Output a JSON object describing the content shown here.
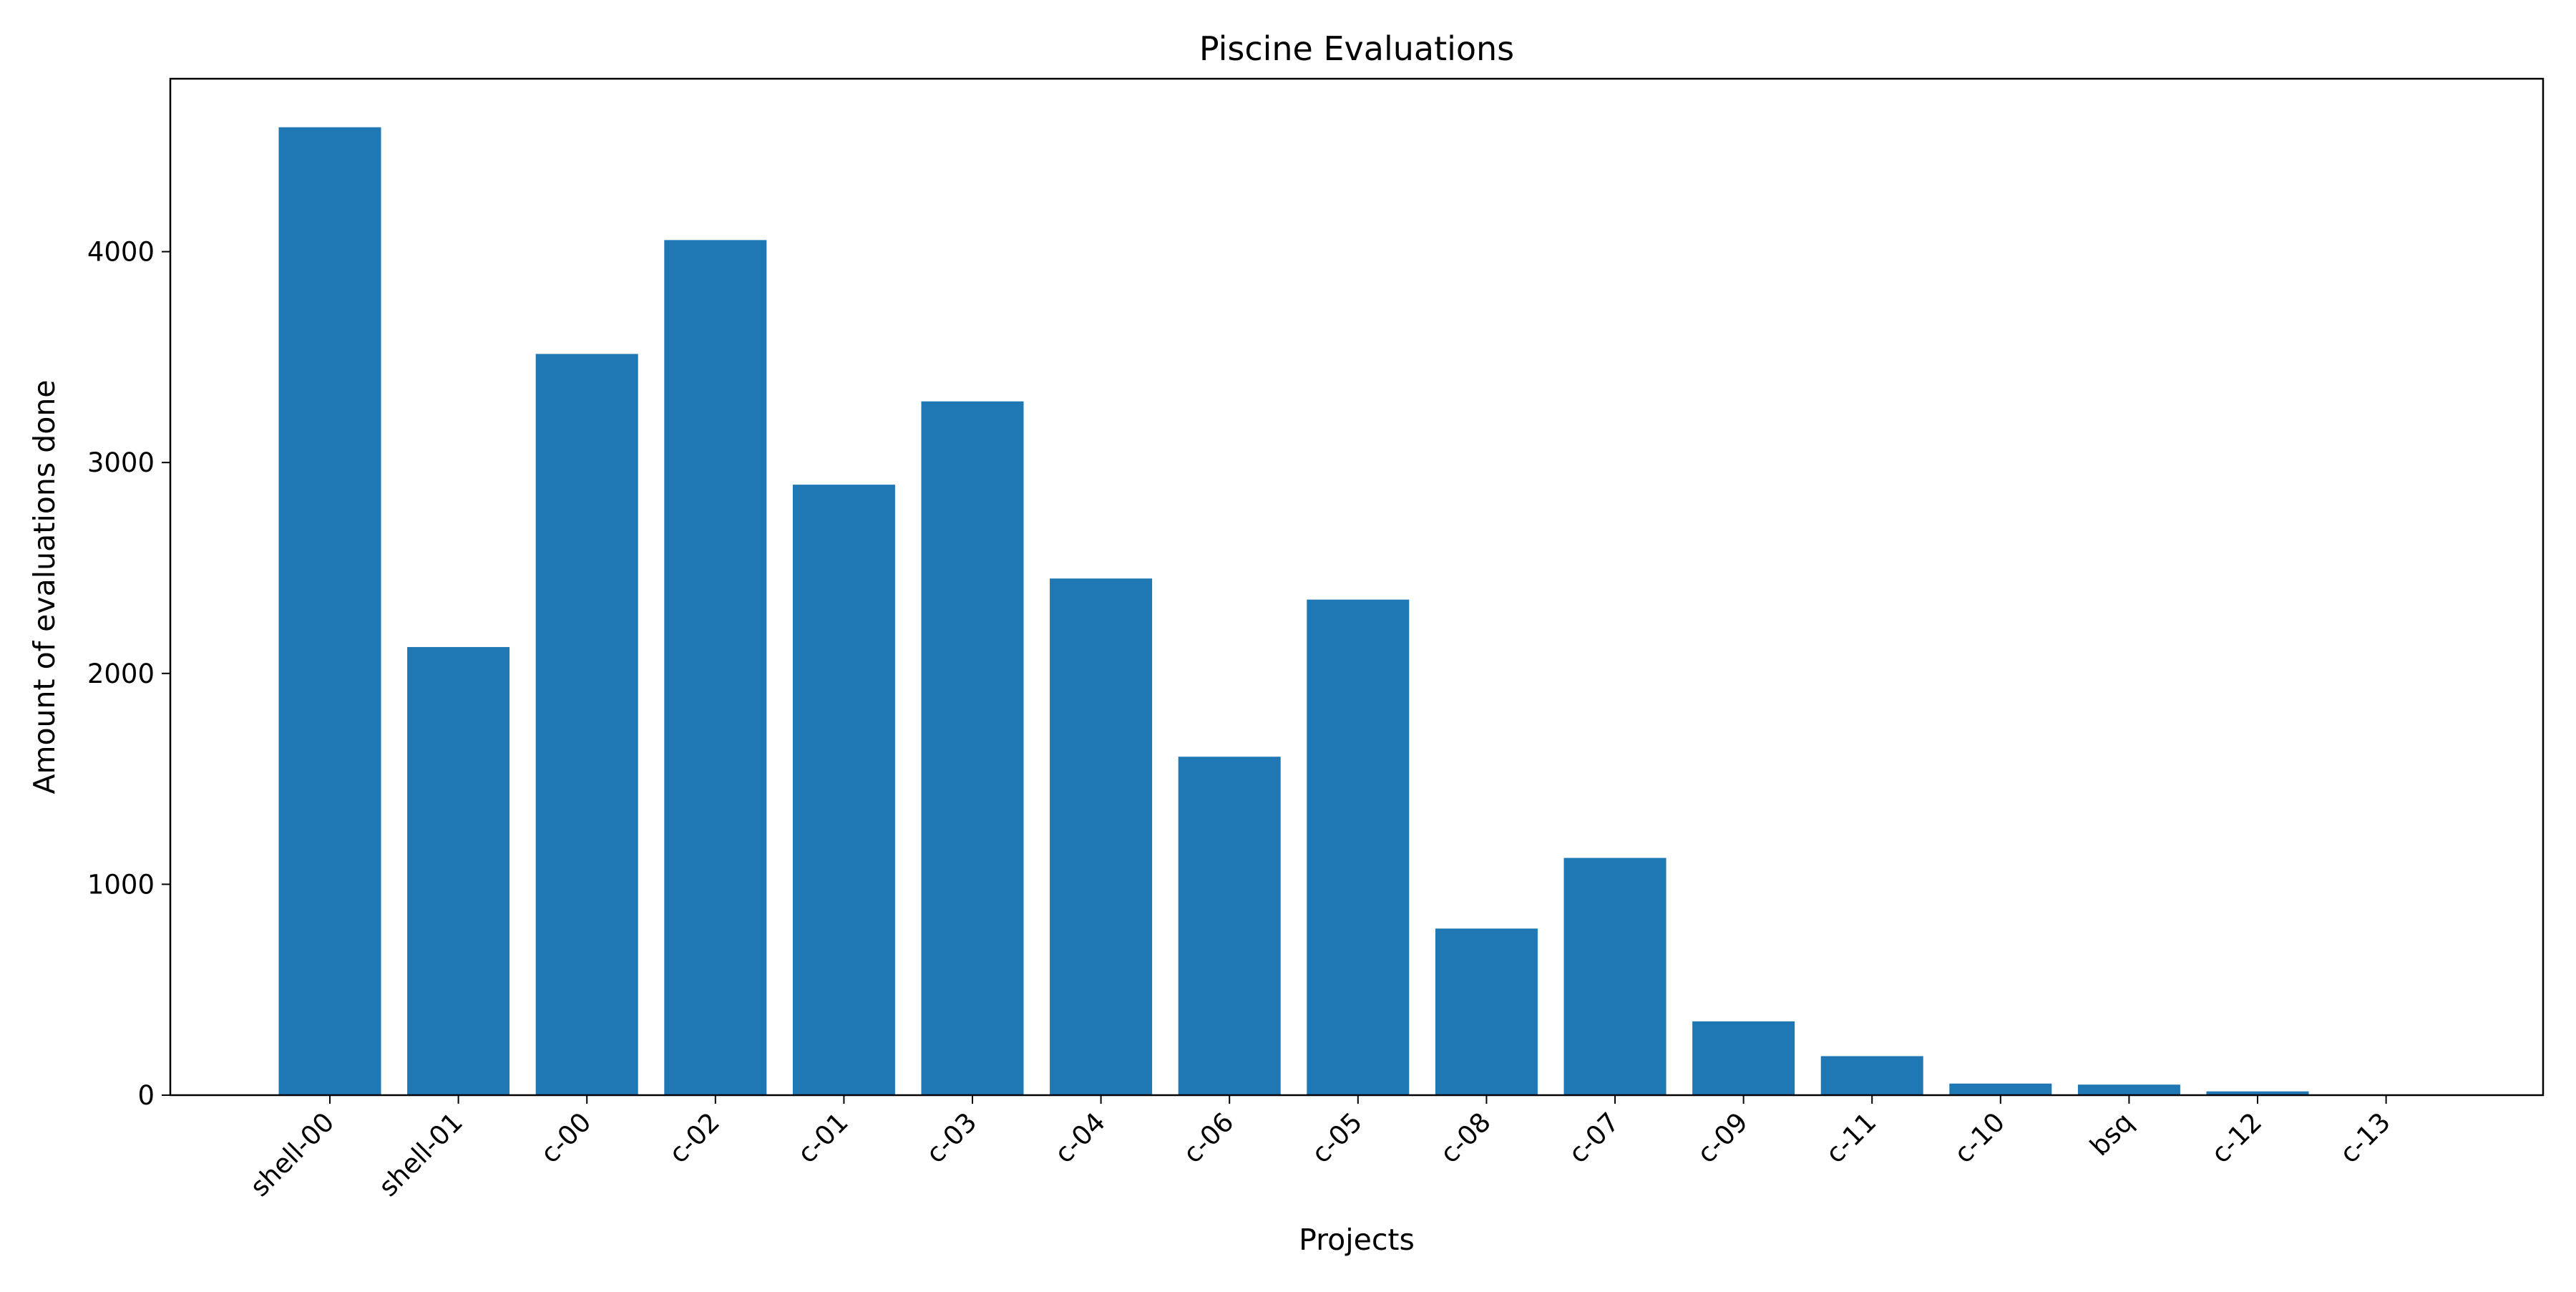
{
  "chart_data": {
    "type": "bar",
    "title": "Piscine Evaluations",
    "xlabel": "Projects",
    "ylabel": "Amount of evaluations done",
    "categories": [
      "shell-00",
      "shell-01",
      "c-00",
      "c-02",
      "c-01",
      "c-03",
      "c-04",
      "c-06",
      "c-05",
      "c-08",
      "c-07",
      "c-09",
      "c-11",
      "c-10",
      "bsq",
      "c-12",
      "c-13"
    ],
    "values": [
      4590,
      2125,
      3515,
      4055,
      2895,
      3290,
      2450,
      1605,
      2350,
      790,
      1125,
      350,
      185,
      55,
      50,
      18,
      0
    ],
    "yticks": [
      0,
      1000,
      2000,
      3000,
      4000
    ],
    "ylim": [
      0,
      4820
    ],
    "grid": false,
    "legend": "none",
    "bar_color": "#1f77b4"
  }
}
